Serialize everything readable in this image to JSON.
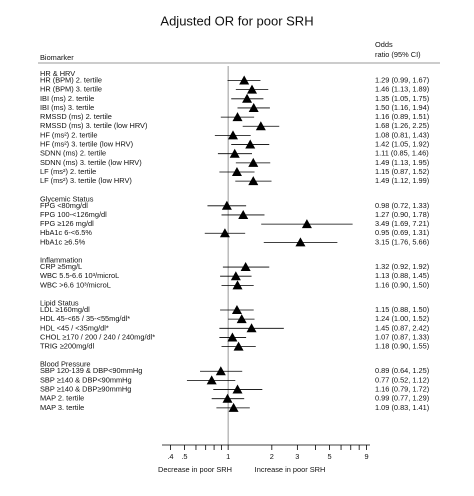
{
  "chart_data": {
    "type": "forest",
    "title": "Adjusted OR for poor SRH",
    "label_header": "Biomarker",
    "estimate_header": [
      "Odds",
      "ratio (95% CI)"
    ],
    "xlabels": [
      "Decrease in poor SRH",
      "Increase in poor SRH"
    ],
    "log_x": true,
    "xlim": [
      0.35,
      9.5
    ],
    "xticks": [
      {
        "value": 0.4,
        "label": ".4"
      },
      {
        "value": 0.5,
        "label": ".5"
      },
      1,
      2,
      3,
      5,
      9
    ],
    "xminor_ticks": [
      0.6,
      0.7,
      0.8,
      0.9,
      4,
      6,
      7,
      8
    ],
    "reference_line": 1,
    "color": "#000000",
    "groups": [
      {
        "name": "HR & HRV",
        "rows": [
          {
            "label": "HR (BPM) 2. tertile",
            "value": 1.29,
            "lower": 0.99,
            "upper": 1.67,
            "value_label": "1.29 (0.99, 1.67)"
          },
          {
            "label": "HR (BPM) 3. tertile",
            "value": 1.46,
            "lower": 1.13,
            "upper": 1.89,
            "value_label": "1.46 (1.13, 1.89)"
          },
          {
            "label": "IBI (ms) 2. tertile",
            "value": 1.35,
            "lower": 1.05,
            "upper": 1.75,
            "value_label": "1.35 (1.05, 1.75)"
          },
          {
            "label": "IBI (ms) 3. tertile",
            "value": 1.5,
            "lower": 1.16,
            "upper": 1.94,
            "value_label": "1.50 (1.16, 1.94)"
          },
          {
            "label": "RMSSD (ms) 2. tertile",
            "value": 1.16,
            "lower": 0.89,
            "upper": 1.51,
            "value_label": "1.16 (0.89, 1.51)"
          },
          {
            "label": "RMSSD (ms) 3. tertile (low HRV)",
            "value": 1.68,
            "lower": 1.26,
            "upper": 2.25,
            "value_label": "1.68 (1.26, 2.25)"
          },
          {
            "label": "HF (ms²) 2. tertile",
            "value": 1.08,
            "lower": 0.81,
            "upper": 1.43,
            "value_label": "1.08 (0.81, 1.43)"
          },
          {
            "label": "HF (ms²) 3. tertile (low HRV)",
            "value": 1.42,
            "lower": 1.05,
            "upper": 1.92,
            "value_label": "1.42 (1.05, 1.92)"
          },
          {
            "label": "SDNN (ms) 2. tertile",
            "value": 1.11,
            "lower": 0.85,
            "upper": 1.46,
            "value_label": "1.11 (0.85, 1.46)"
          },
          {
            "label": "SDNN (ms) 3. tertile (low HRV)",
            "value": 1.49,
            "lower": 1.13,
            "upper": 1.95,
            "value_label": "1.49 (1.13, 1.95)"
          },
          {
            "label": "LF (ms²) 2. tertile",
            "value": 1.15,
            "lower": 0.87,
            "upper": 1.52,
            "value_label": "1.15 (0.87, 1.52)"
          },
          {
            "label": "LF (ms²) 3. tertile (low HRV)",
            "value": 1.49,
            "lower": 1.12,
            "upper": 1.99,
            "value_label": "1.49 (1.12, 1.99)"
          }
        ]
      },
      {
        "name": "Glycemic Status",
        "rows": [
          {
            "label": "FPG <80mg/dl",
            "value": 0.98,
            "lower": 0.72,
            "upper": 1.33,
            "value_label": "0.98 (0.72, 1.33)"
          },
          {
            "label": "FPG 100-<126mg/dl",
            "value": 1.27,
            "lower": 0.9,
            "upper": 1.78,
            "value_label": "1.27 (0.90, 1.78)"
          },
          {
            "label": "FPG ≥126 mg/dl",
            "value": 3.49,
            "lower": 1.69,
            "upper": 7.21,
            "value_label": "3.49 (1.69, 7.21)"
          },
          {
            "label": "HbA1c 6-<6.5%",
            "value": 0.95,
            "lower": 0.69,
            "upper": 1.31,
            "value_label": "0.95 (0.69, 1.31)"
          },
          {
            "label": "HbA1c ≥6.5%",
            "value": 3.15,
            "lower": 1.76,
            "upper": 5.66,
            "value_label": "3.15 (1.76, 5.66)"
          }
        ]
      },
      {
        "name": "Inflammation",
        "rows": [
          {
            "label": "CRP ≥5mg/L",
            "value": 1.32,
            "lower": 0.92,
            "upper": 1.92,
            "value_label": "1.32 (0.92, 1.92)"
          },
          {
            "label": "WBC 5.5-6.6 10³/microL",
            "value": 1.13,
            "lower": 0.88,
            "upper": 1.45,
            "value_label": "1.13 (0.88, 1.45)"
          },
          {
            "label": "WBC >6.6 10³/microL",
            "value": 1.16,
            "lower": 0.9,
            "upper": 1.5,
            "value_label": "1.16 (0.90, 1.50)"
          }
        ]
      },
      {
        "name": "Lipid Status",
        "rows": [
          {
            "label": "LDL ≥160mg/dl",
            "value": 1.15,
            "lower": 0.88,
            "upper": 1.5,
            "value_label": "1.15 (0.88, 1.50)"
          },
          {
            "label": "HDL 45-<65 / 35-<55mg/dl*",
            "value": 1.24,
            "lower": 1.0,
            "upper": 1.52,
            "value_label": "1.24 (1.00, 1.52)"
          },
          {
            "label": "HDL <45 / <35mg/dl*",
            "value": 1.45,
            "lower": 0.87,
            "upper": 2.42,
            "value_label": "1.45 (0.87, 2.42)"
          },
          {
            "label": "CHOL ≥170 / 200 / 240 / 240mg/dl*",
            "value": 1.07,
            "lower": 0.87,
            "upper": 1.33,
            "value_label": "1.07 (0.87, 1.33)"
          },
          {
            "label": "TRIG ≥200mg/dl",
            "value": 1.18,
            "lower": 0.9,
            "upper": 1.55,
            "value_label": "1.18 (0.90, 1.55)"
          }
        ]
      },
      {
        "name": "Blood Pressure",
        "rows": [
          {
            "label": "SBP 120-139 & DBP<90mmHg",
            "value": 0.89,
            "lower": 0.64,
            "upper": 1.25,
            "value_label": "0.89 (0.64, 1.25)"
          },
          {
            "label": "SBP ≥140 & DBP<90mmHg",
            "value": 0.77,
            "lower": 0.52,
            "upper": 1.12,
            "value_label": "0.77 (0.52, 1.12)"
          },
          {
            "label": "SBP ≥140 & DBP≥90mmHg",
            "value": 1.16,
            "lower": 0.79,
            "upper": 1.72,
            "value_label": "1.16 (0.79, 1.72)"
          },
          {
            "label": "MAP 2. tertile",
            "value": 0.99,
            "lower": 0.77,
            "upper": 1.29,
            "value_label": "0.99 (0.77, 1.29)"
          },
          {
            "label": "MAP 3. tertile",
            "value": 1.09,
            "lower": 0.83,
            "upper": 1.41,
            "value_label": "1.09 (0.83, 1.41)"
          }
        ]
      }
    ]
  }
}
